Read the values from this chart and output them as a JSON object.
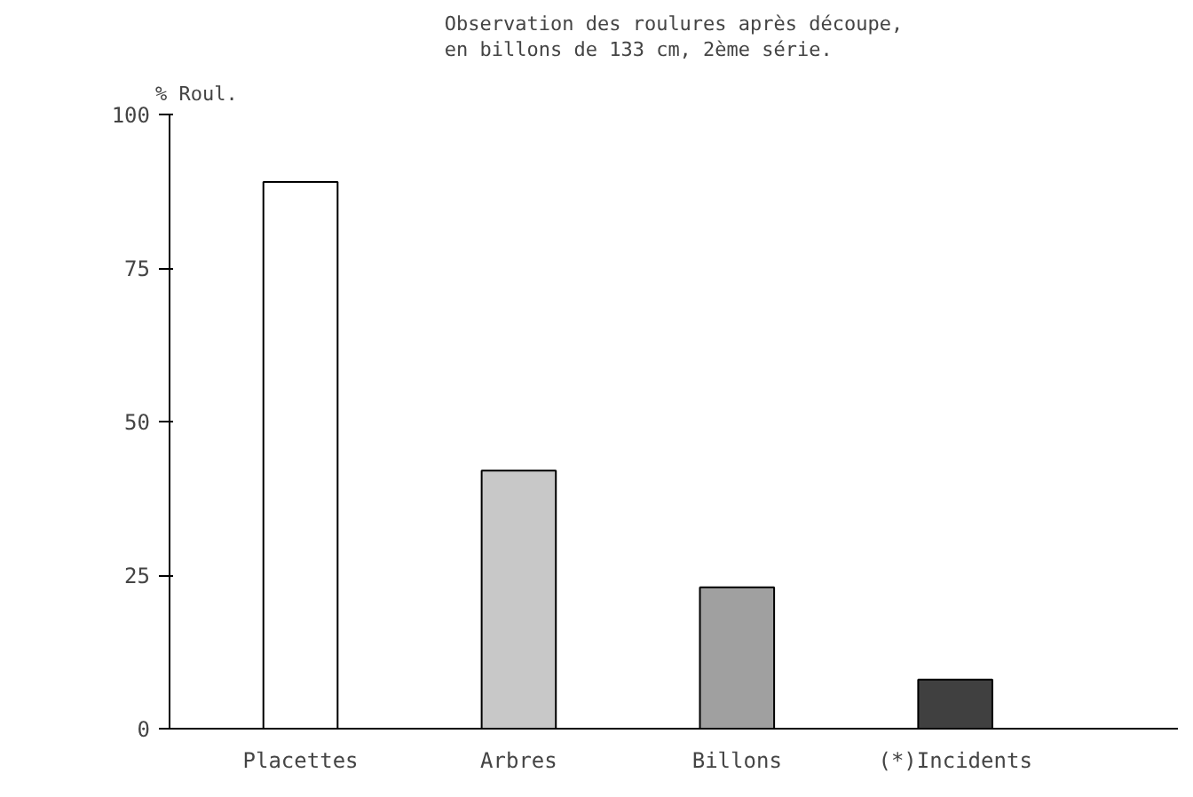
{
  "chart_data": {
    "type": "bar",
    "title": "Observation des roulures après découpe,\nen billons de 133 cm, 2ème série.",
    "ylabel": "% Roul.",
    "categories": [
      "Placettes",
      "Arbres",
      "Billons",
      "(*)Incidents"
    ],
    "values": [
      89,
      42,
      23,
      8
    ],
    "colors": [
      "#ffffff",
      "#c8c8c8",
      "#a0a0a0",
      "#404040"
    ],
    "ylim": [
      0,
      100
    ],
    "yticks": [
      0,
      25,
      50,
      75,
      100
    ],
    "grid": false
  }
}
